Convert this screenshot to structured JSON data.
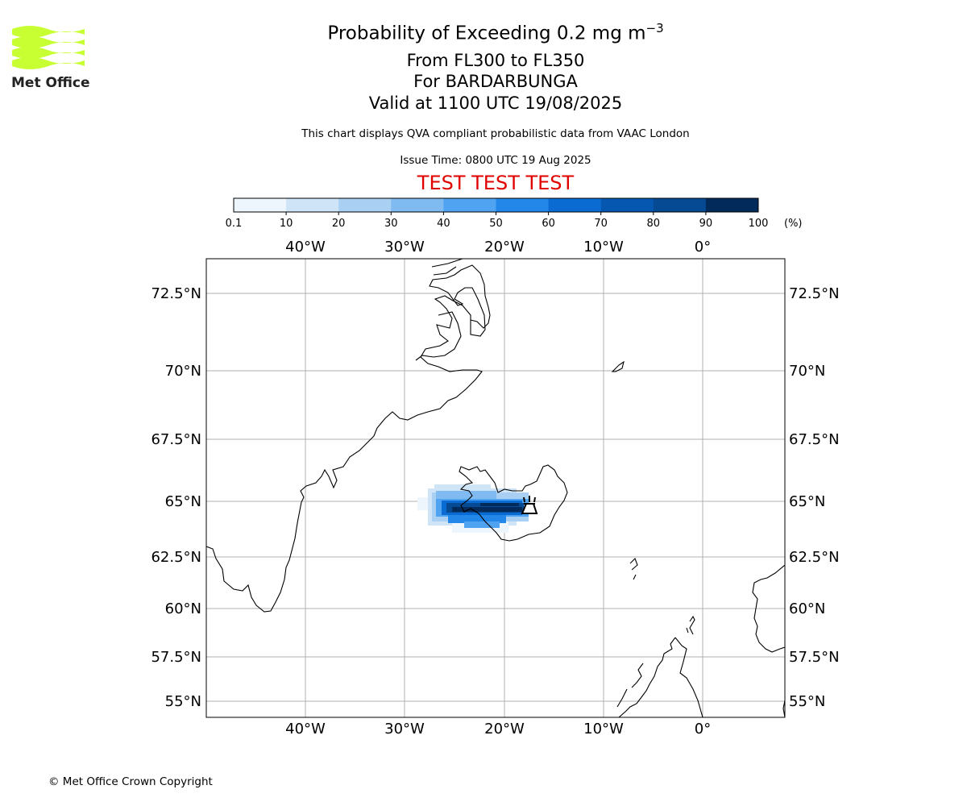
{
  "logo": {
    "text": "Met Office",
    "wave_color": "#c8ff32"
  },
  "header": {
    "title": "Probability of Exceeding 0.2 mg m",
    "title_superscript": "−3",
    "line1": "From FL300 to FL350",
    "line2": "For BARDARBUNGA",
    "line3": "Valid at 1100 UTC 19/08/2025",
    "disclaimer": "This chart displays QVA compliant probabilistic data from VAAC London",
    "issue_time": "Issue Time: 0800 UTC 19 Aug 2025",
    "test_banner": "TEST TEST TEST",
    "test_color": "#e00000"
  },
  "colorbar": {
    "ticks": [
      "0.1",
      "10",
      "20",
      "30",
      "40",
      "50",
      "60",
      "70",
      "80",
      "90",
      "100"
    ],
    "unit": "(%)",
    "colors": [
      "#eef6fd",
      "#cfe4f7",
      "#a9d0f2",
      "#7fbaf0",
      "#4fa3f0",
      "#2287e8",
      "#0a6cd2",
      "#0657b0",
      "#054a92",
      "#022b5b"
    ]
  },
  "map": {
    "lon_labels": [
      "40°W",
      "30°W",
      "20°W",
      "10°W",
      "0°"
    ],
    "lat_labels": [
      "72.5°N",
      "70°N",
      "67.5°N",
      "65°N",
      "62.5°N",
      "60°N",
      "57.5°N",
      "55°N"
    ],
    "volcano_name": "BARDARBUNGA",
    "volcano_icon": "volcano-icon"
  },
  "footer": {
    "copyright": "© Met Office Crown Copyright"
  }
}
